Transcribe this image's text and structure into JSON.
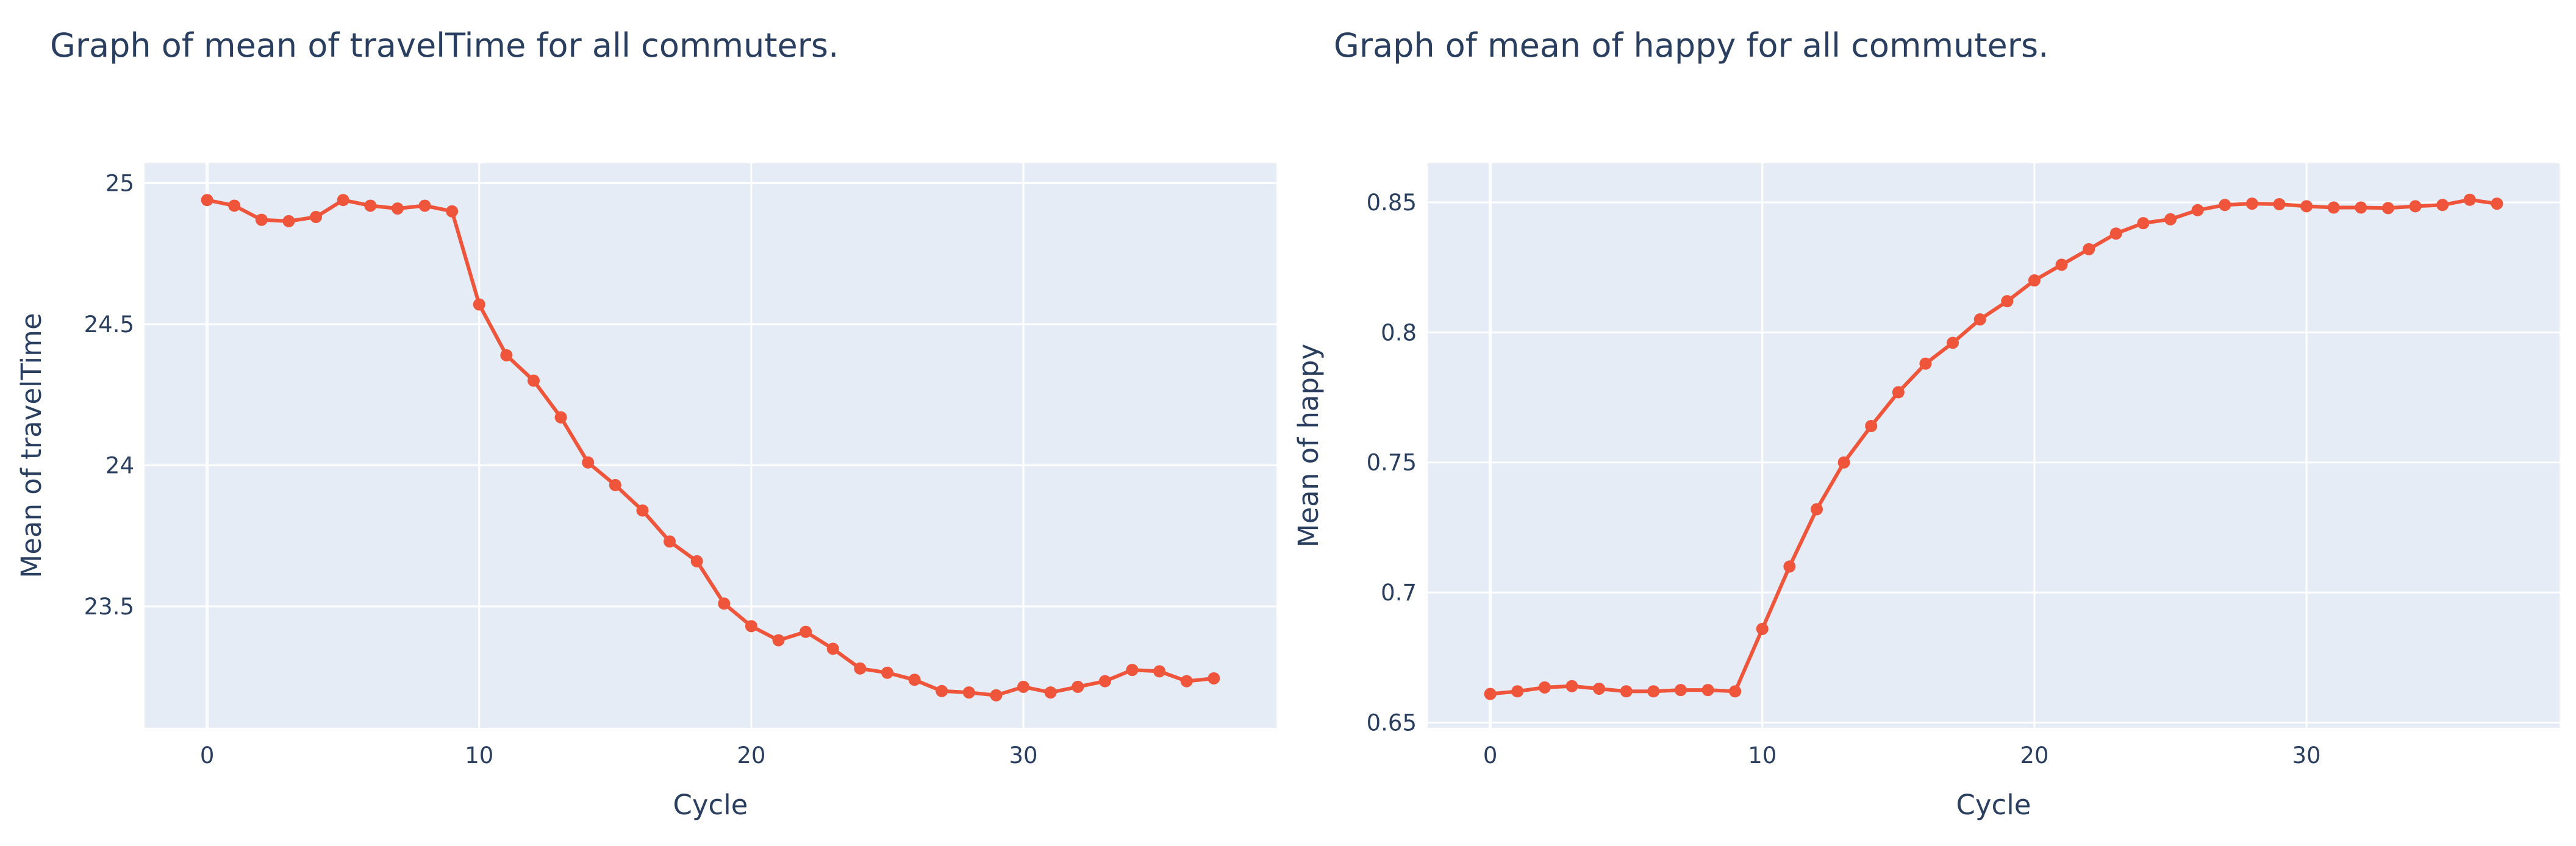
{
  "colors": {
    "series": "#ef553b",
    "plot_background": "#e5ecf6",
    "grid": "#ffffff",
    "text": "#2a3f5f"
  },
  "chart_data": [
    {
      "type": "line",
      "title": "Graph of mean of travelTime for all commuters.",
      "xlabel": "Cycle",
      "ylabel": "Mean of travelTime",
      "xlim": [
        -2.3,
        39.3
      ],
      "ylim": [
        23.07,
        25.07
      ],
      "xticks": [
        0,
        10,
        20,
        30
      ],
      "xtick_labels": [
        "0",
        "10",
        "20",
        "30"
      ],
      "yticks": [
        23.5,
        24,
        24.5,
        25
      ],
      "ytick_labels": [
        "23.5",
        "24",
        "24.5",
        "25"
      ],
      "grid": true,
      "series": [
        {
          "name": "travelTime",
          "x": [
            0,
            1,
            2,
            3,
            4,
            5,
            6,
            7,
            8,
            9,
            10,
            11,
            12,
            13,
            14,
            15,
            16,
            17,
            18,
            19,
            20,
            21,
            22,
            23,
            24,
            25,
            26,
            27,
            28,
            29,
            30,
            31,
            32,
            33,
            34,
            35,
            36,
            37
          ],
          "values": [
            24.94,
            24.92,
            24.87,
            24.865,
            24.88,
            24.94,
            24.92,
            24.91,
            24.92,
            24.9,
            24.57,
            24.39,
            24.3,
            24.17,
            24.01,
            23.93,
            23.84,
            23.73,
            23.66,
            23.51,
            23.43,
            23.38,
            23.41,
            23.35,
            23.28,
            23.265,
            23.24,
            23.2,
            23.195,
            23.185,
            23.215,
            23.195,
            23.215,
            23.235,
            23.275,
            23.27,
            23.235,
            23.245
          ]
        }
      ]
    },
    {
      "type": "line",
      "title": "Graph of mean of happy for all commuters.",
      "xlabel": "Cycle",
      "ylabel": "Mean of happy",
      "xlim": [
        -2.3,
        39.3
      ],
      "ylim": [
        0.648,
        0.865
      ],
      "xticks": [
        0,
        10,
        20,
        30
      ],
      "xtick_labels": [
        "0",
        "10",
        "20",
        "30"
      ],
      "yticks": [
        0.65,
        0.7,
        0.75,
        0.8,
        0.85
      ],
      "ytick_labels": [
        "0.65",
        "0.7",
        "0.75",
        "0.8",
        "0.85"
      ],
      "grid": true,
      "series": [
        {
          "name": "happy",
          "x": [
            0,
            1,
            2,
            3,
            4,
            5,
            6,
            7,
            8,
            9,
            10,
            11,
            12,
            13,
            14,
            15,
            16,
            17,
            18,
            19,
            20,
            21,
            22,
            23,
            24,
            25,
            26,
            27,
            28,
            29,
            30,
            31,
            32,
            33,
            34,
            35,
            36,
            37
          ],
          "values": [
            0.661,
            0.662,
            0.6635,
            0.664,
            0.663,
            0.662,
            0.662,
            0.6625,
            0.6625,
            0.662,
            0.686,
            0.71,
            0.732,
            0.75,
            0.764,
            0.777,
            0.788,
            0.796,
            0.805,
            0.812,
            0.82,
            0.826,
            0.832,
            0.838,
            0.842,
            0.8435,
            0.847,
            0.849,
            0.8495,
            0.8493,
            0.8485,
            0.848,
            0.848,
            0.8478,
            0.8485,
            0.849,
            0.851,
            0.8495
          ]
        }
      ]
    }
  ]
}
